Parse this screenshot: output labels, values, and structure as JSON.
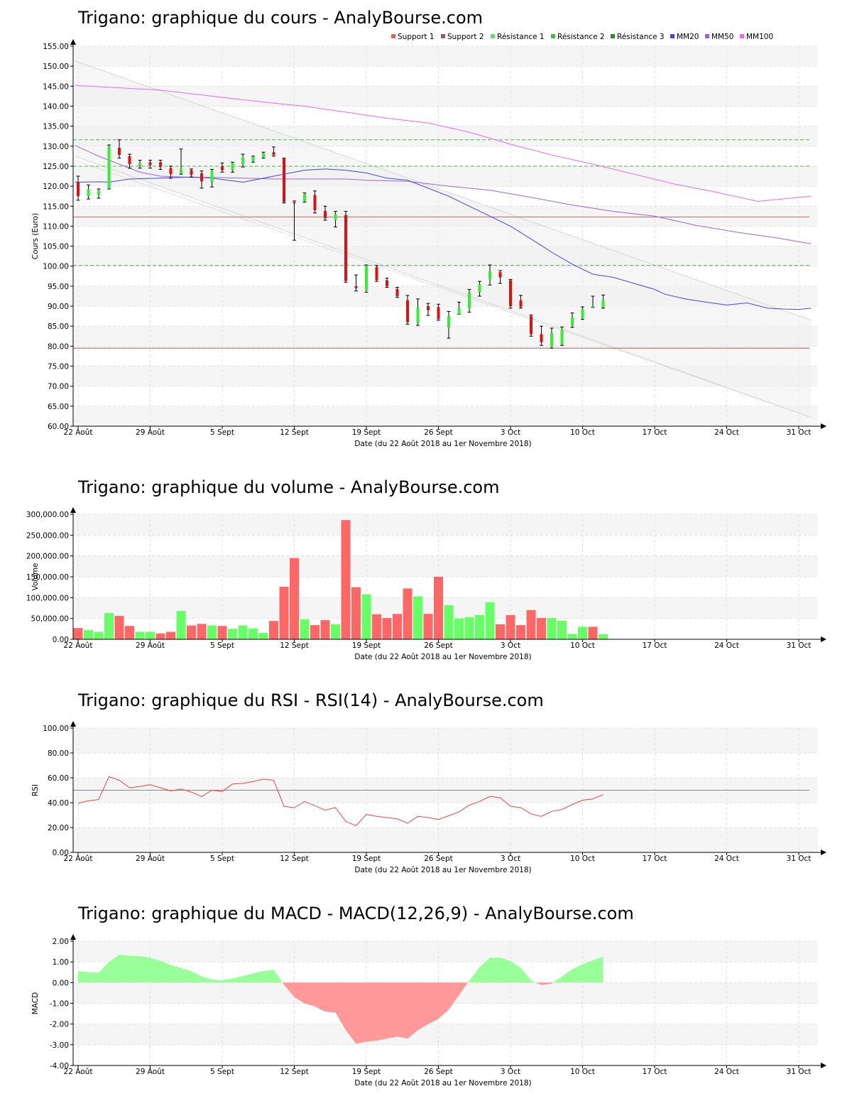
{
  "site": "AnalyBourse.com",
  "chart_data": [
    {
      "type": "candlestick",
      "title": "Trigano: graphique du cours - AnalyBourse.com",
      "xlabel": "Date (du 22 Août 2018 au 1er Novembre 2018)",
      "ylabel": "Cours (Euro)",
      "ylim": [
        60,
        155
      ],
      "y_ticks": [
        "60.00",
        "65.00",
        "70.00",
        "75.00",
        "80.00",
        "85.00",
        "90.00",
        "95.00",
        "100.00",
        "105.00",
        "110.00",
        "115.00",
        "120.00",
        "125.00",
        "130.00",
        "135.00",
        "140.00",
        "145.00",
        "150.00",
        "155.00"
      ],
      "x_ticks": [
        {
          "label": "22 Août",
          "day": 0
        },
        {
          "label": "29 Août",
          "day": 7
        },
        {
          "label": "5 Sept",
          "day": 14
        },
        {
          "label": "12 Sept",
          "day": 21
        },
        {
          "label": "19 Sept",
          "day": 28
        },
        {
          "label": "26 Sept",
          "day": 35
        },
        {
          "label": "3 Oct",
          "day": 42
        },
        {
          "label": "10 Oct",
          "day": 49
        },
        {
          "label": "17 Oct",
          "day": 56
        },
        {
          "label": "24 Oct",
          "day": 63
        },
        {
          "label": "31 Oct",
          "day": 70
        }
      ],
      "legend": [
        {
          "name": "Support 1",
          "color": "#d96666"
        },
        {
          "name": "Support 2",
          "color": "#a05a5a"
        },
        {
          "name": "Résistance 1",
          "color": "#66dd66"
        },
        {
          "name": "Résistance 2",
          "color": "#44bb44"
        },
        {
          "name": "Résistance 3",
          "color": "#338833"
        },
        {
          "name": "MM20",
          "color": "#4444ee"
        },
        {
          "name": "MM50",
          "color": "#9966dd"
        },
        {
          "name": "MM100",
          "color": "#ee66ee"
        }
      ],
      "levels": {
        "support_1": 112.3,
        "support_2": 79.5,
        "resistance_1": 100.2,
        "resistance_2": 125.0,
        "resistance_3": 131.6
      },
      "candles": [
        {
          "day": 0,
          "open": 121,
          "high": 122.5,
          "low": 116.5,
          "close": 117.5
        },
        {
          "day": 1,
          "open": 117.5,
          "high": 120.3,
          "low": 116.8,
          "close": 119.2
        },
        {
          "day": 2,
          "open": 117.8,
          "high": 119.3,
          "low": 117,
          "close": 118.8
        },
        {
          "day": 3,
          "open": 119.5,
          "high": 130.3,
          "low": 119.3,
          "close": 129.8
        },
        {
          "day": 4,
          "open": 129.6,
          "high": 131.6,
          "low": 127,
          "close": 127.8
        },
        {
          "day": 5,
          "open": 127.5,
          "high": 128,
          "low": 124.5,
          "close": 125.5
        },
        {
          "day": 6,
          "open": 125.2,
          "high": 126.5,
          "low": 124.5,
          "close": 125.8
        },
        {
          "day": 7,
          "open": 126,
          "high": 126.5,
          "low": 124.5,
          "close": 125.2
        },
        {
          "day": 8,
          "open": 126,
          "high": 126.5,
          "low": 124.2,
          "close": 124.8
        },
        {
          "day": 9,
          "open": 124.5,
          "high": 125,
          "low": 122,
          "close": 123
        },
        {
          "day": 10,
          "open": 123.2,
          "high": 129.3,
          "low": 123,
          "close": 124.3
        },
        {
          "day": 11,
          "open": 124,
          "high": 124.3,
          "low": 122.3,
          "close": 122.8
        },
        {
          "day": 12,
          "open": 123.2,
          "high": 123.8,
          "low": 119.5,
          "close": 121.2
        },
        {
          "day": 13,
          "open": 121,
          "high": 124.2,
          "low": 119.8,
          "close": 123.8
        },
        {
          "day": 14,
          "open": 125,
          "high": 125.8,
          "low": 123.5,
          "close": 124
        },
        {
          "day": 15,
          "open": 124,
          "high": 126,
          "low": 123.5,
          "close": 125.8
        },
        {
          "day": 16,
          "open": 125.5,
          "high": 128,
          "low": 124.8,
          "close": 127.2
        },
        {
          "day": 17,
          "open": 126.3,
          "high": 127.5,
          "low": 126,
          "close": 127.3
        },
        {
          "day": 18,
          "open": 127.2,
          "high": 128.5,
          "low": 127,
          "close": 128.2
        },
        {
          "day": 19,
          "open": 128.5,
          "high": 129.8,
          "low": 127.5,
          "close": 127.8
        },
        {
          "day": 20,
          "open": 127,
          "high": 127,
          "low": 115.8,
          "close": 116
        },
        {
          "day": 21,
          "open": 116,
          "high": 116.3,
          "low": 106.5,
          "close": 115.7
        },
        {
          "day": 22,
          "open": 116.2,
          "high": 118.3,
          "low": 116,
          "close": 118
        },
        {
          "day": 23,
          "open": 117.8,
          "high": 118.8,
          "low": 113.3,
          "close": 114
        },
        {
          "day": 24,
          "open": 113.8,
          "high": 115,
          "low": 111.5,
          "close": 112
        },
        {
          "day": 25,
          "open": 111.5,
          "high": 113.7,
          "low": 109.8,
          "close": 113
        },
        {
          "day": 26,
          "open": 112.8,
          "high": 113.7,
          "low": 96,
          "close": 96.3
        },
        {
          "day": 27,
          "open": 95,
          "high": 97.8,
          "low": 93.8,
          "close": 94.5
        },
        {
          "day": 28,
          "open": 94,
          "high": 100.3,
          "low": 93.5,
          "close": 100
        },
        {
          "day": 29,
          "open": 99.8,
          "high": 100.2,
          "low": 96.2,
          "close": 96.5
        },
        {
          "day": 30,
          "open": 96.5,
          "high": 97,
          "low": 94.7,
          "close": 95
        },
        {
          "day": 31,
          "open": 94.3,
          "high": 94.7,
          "low": 92.2,
          "close": 92.5
        },
        {
          "day": 32,
          "open": 91.5,
          "high": 92.7,
          "low": 85.5,
          "close": 86
        },
        {
          "day": 33,
          "open": 85.7,
          "high": 91.8,
          "low": 85.2,
          "close": 89.7
        },
        {
          "day": 34,
          "open": 90,
          "high": 90.7,
          "low": 87.7,
          "close": 89
        },
        {
          "day": 35,
          "open": 89.8,
          "high": 90.5,
          "low": 86.5,
          "close": 86.8
        },
        {
          "day": 36,
          "open": 84.7,
          "high": 88.7,
          "low": 82,
          "close": 87.5
        },
        {
          "day": 37,
          "open": 88,
          "high": 91,
          "low": 88,
          "close": 89.5
        },
        {
          "day": 38,
          "open": 89.5,
          "high": 94.2,
          "low": 88.5,
          "close": 93.5
        },
        {
          "day": 39,
          "open": 93.5,
          "high": 96.2,
          "low": 92.5,
          "close": 95.5
        },
        {
          "day": 40,
          "open": 96.7,
          "high": 100.3,
          "low": 95.3,
          "close": 98.7
        },
        {
          "day": 41,
          "open": 98.5,
          "high": 98.9,
          "low": 95.7,
          "close": 97.2
        },
        {
          "day": 42,
          "open": 96.5,
          "high": 96.7,
          "low": 89.5,
          "close": 90
        },
        {
          "day": 43,
          "open": 91.5,
          "high": 92.7,
          "low": 89.5,
          "close": 89.8
        },
        {
          "day": 44,
          "open": 87.5,
          "high": 87.8,
          "low": 82.5,
          "close": 83
        },
        {
          "day": 45,
          "open": 83,
          "high": 85,
          "low": 80.2,
          "close": 81
        },
        {
          "day": 46,
          "open": 79.8,
          "high": 84.5,
          "low": 79.5,
          "close": 83.3
        },
        {
          "day": 47,
          "open": 80.5,
          "high": 84.8,
          "low": 80.2,
          "close": 84.2
        },
        {
          "day": 48,
          "open": 85.2,
          "high": 88.3,
          "low": 84.7,
          "close": 87.2
        },
        {
          "day": 49,
          "open": 87,
          "high": 89.8,
          "low": 86.7,
          "close": 89.3
        },
        {
          "day": 50,
          "open": 89.8,
          "high": 92.5,
          "low": 89.7,
          "close": 90
        },
        {
          "day": 51,
          "open": 89.7,
          "high": 92.8,
          "low": 89.5,
          "close": 91.5
        }
      ],
      "mm20": [
        [
          -0.3,
          121
        ],
        [
          2,
          121.1
        ],
        [
          3,
          121
        ],
        [
          5,
          121.8
        ],
        [
          8,
          122
        ],
        [
          11,
          122.3
        ],
        [
          13,
          122
        ],
        [
          16,
          121
        ],
        [
          19,
          122.5
        ],
        [
          22,
          124
        ],
        [
          24,
          124.3
        ],
        [
          26,
          124
        ],
        [
          28,
          123.3
        ],
        [
          30,
          122
        ],
        [
          32,
          121.5
        ],
        [
          34,
          119.5
        ],
        [
          36,
          117.5
        ],
        [
          38,
          115
        ],
        [
          40,
          112.5
        ],
        [
          42,
          110
        ],
        [
          44,
          106.8
        ],
        [
          46,
          103.5
        ],
        [
          48,
          100.5
        ],
        [
          50,
          98
        ],
        [
          52,
          97.2
        ],
        [
          54,
          95.7
        ],
        [
          56,
          94.2
        ],
        [
          57,
          93
        ],
        [
          59,
          91.8
        ],
        [
          61,
          91
        ],
        [
          63,
          90.3
        ],
        [
          65,
          90.8
        ],
        [
          67,
          89.5
        ],
        [
          68.5,
          89.3
        ],
        [
          70,
          89.2
        ],
        [
          71.2,
          89.5
        ]
      ],
      "mm50": [
        [
          -0.3,
          130.2
        ],
        [
          2,
          127.5
        ],
        [
          4,
          125.5
        ],
        [
          6,
          123.5
        ],
        [
          8,
          122.5
        ],
        [
          11,
          122.2
        ],
        [
          13,
          122.2
        ],
        [
          16,
          122
        ],
        [
          19,
          121.8
        ],
        [
          22,
          121.8
        ],
        [
          24,
          121.8
        ],
        [
          26,
          121.8
        ],
        [
          28,
          121.5
        ],
        [
          32,
          121.2
        ],
        [
          36,
          120
        ],
        [
          40,
          119
        ],
        [
          44,
          117.2
        ],
        [
          48,
          115.3
        ],
        [
          52,
          113.7
        ],
        [
          56,
          112.5
        ],
        [
          60,
          110.2
        ],
        [
          64,
          108.5
        ],
        [
          68,
          107
        ],
        [
          71.2,
          105.6
        ]
      ],
      "mm100": [
        [
          -0.3,
          145.2
        ],
        [
          4,
          144.6
        ],
        [
          8,
          144
        ],
        [
          13,
          142.5
        ],
        [
          18,
          141
        ],
        [
          22,
          140
        ],
        [
          26,
          138.5
        ],
        [
          30,
          137
        ],
        [
          34,
          135.8
        ],
        [
          38,
          133.5
        ],
        [
          42,
          130.5
        ],
        [
          46,
          127.8
        ],
        [
          50,
          125.5
        ],
        [
          54,
          123
        ],
        [
          58,
          120.5
        ],
        [
          62,
          118.5
        ],
        [
          66,
          116.2
        ],
        [
          71.2,
          117.5
        ]
      ],
      "channel_upper": [
        [
          -0.3,
          151.3
        ],
        [
          71.2,
          86.5
        ]
      ],
      "channel_lower_outer": [
        [
          -0.3,
          127.5
        ],
        [
          71.2,
          62.2
        ]
      ],
      "channel_lower_inner": [
        [
          -0.3,
          126.5
        ],
        [
          71.2,
          62.2
        ]
      ]
    },
    {
      "type": "bar",
      "title": "Trigano: graphique du volume - AnalyBourse.com",
      "xlabel": "Date (du 22 Août 2018 au 1er Novembre 2018)",
      "ylabel": "Volume",
      "ylim": [
        0,
        300000
      ],
      "y_ticks": [
        "0.00",
        "50,000.00",
        "100,000.00",
        "150,000.00",
        "200,000.00",
        "250,000.00",
        "300,000.00"
      ],
      "values": [
        27000,
        22000,
        18000,
        63000,
        56000,
        32000,
        18000,
        18000,
        14000,
        18000,
        68000,
        33000,
        37000,
        33000,
        32000,
        25000,
        33000,
        26000,
        15000,
        44000,
        126000,
        195000,
        48000,
        34000,
        46000,
        36000,
        286000,
        125000,
        108000,
        60000,
        51000,
        61000,
        122000,
        103000,
        61000,
        150000,
        82000,
        50000,
        53000,
        58000,
        89000,
        36000,
        58000,
        34000,
        70000,
        51000,
        51000,
        45000,
        13000,
        30000,
        30000,
        12000
      ],
      "colors": [
        "red",
        "green",
        "green",
        "green",
        "red",
        "red",
        "green",
        "green",
        "red",
        "red",
        "green",
        "red",
        "red",
        "green",
        "red",
        "green",
        "green",
        "green",
        "green",
        "red",
        "red",
        "red",
        "green",
        "red",
        "red",
        "green",
        "red",
        "red",
        "green",
        "red",
        "red",
        "red",
        "red",
        "green",
        "red",
        "red",
        "green",
        "green",
        "green",
        "green",
        "green",
        "red",
        "red",
        "red",
        "red",
        "red",
        "green",
        "green",
        "green",
        "green",
        "red",
        "green"
      ]
    },
    {
      "type": "line",
      "title": "Trigano: graphique du RSI - RSI(14) - AnalyBourse.com",
      "xlabel": "Date (du 22 Août 2018 au 1er Novembre 2018)",
      "ylabel": "RSI",
      "ylim": [
        0,
        100
      ],
      "y_ticks": [
        "0.00",
        "20.00",
        "40.00",
        "60.00",
        "80.00",
        "100.00"
      ],
      "reference": 50,
      "values": [
        39.5,
        41.5,
        42.5,
        61,
        58,
        52,
        53,
        54.5,
        52,
        49.5,
        51,
        48.5,
        45,
        50,
        49,
        55,
        55.5,
        57,
        59,
        58,
        37,
        36,
        41,
        37.5,
        34,
        36,
        25,
        21.5,
        30.5,
        29,
        28,
        27,
        23.5,
        29,
        28,
        26.5,
        29.5,
        32.5,
        38,
        41,
        45,
        44,
        37,
        36,
        31,
        29,
        33,
        34.5,
        38.5,
        42,
        43,
        46.5
      ]
    },
    {
      "type": "area",
      "title": "Trigano: graphique du MACD - MACD(12,26,9) - AnalyBourse.com",
      "xlabel": "Date (du 22 Août 2018 au 1er Novembre 2018)",
      "ylabel": "MACD",
      "ylim": [
        -4,
        2
      ],
      "y_ticks": [
        "-4.00",
        "-3.00",
        "-2.00",
        "-1.00",
        "0.00",
        "1.00",
        "2.00"
      ],
      "values": [
        0.55,
        0.5,
        0.48,
        1.0,
        1.35,
        1.3,
        1.28,
        1.2,
        1.05,
        0.85,
        0.7,
        0.55,
        0.3,
        0.15,
        0.12,
        0.2,
        0.32,
        0.45,
        0.55,
        0.62,
        -0.1,
        -0.7,
        -1.0,
        -1.15,
        -1.4,
        -1.45,
        -2.3,
        -2.95,
        -2.85,
        -2.8,
        -2.7,
        -2.6,
        -2.7,
        -2.3,
        -2.0,
        -1.75,
        -1.3,
        -0.6,
        0.1,
        0.75,
        1.2,
        1.2,
        1.05,
        0.7,
        0.1,
        -0.12,
        -0.05,
        0.3,
        0.65,
        0.88,
        1.08,
        1.25
      ]
    }
  ]
}
